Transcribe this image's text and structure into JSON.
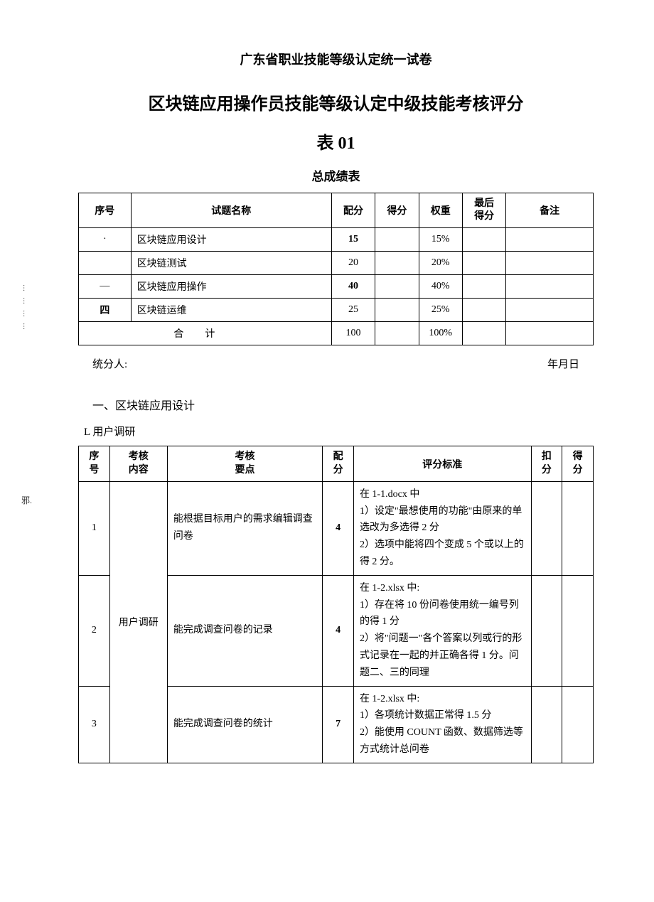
{
  "header": {
    "line1": "广东省职业技能等级认定统一试卷",
    "line2": "区块链应用操作员技能等级认定中级技能考核评分",
    "line3": "表 01",
    "subtitle": "总成绩表"
  },
  "side": {
    "dots": "…………",
    "label": "邪."
  },
  "scoreTable": {
    "headers": {
      "seq": "序号",
      "name": "试题名称",
      "points": "配分",
      "score": "得分",
      "weight": "权重",
      "final_l1": "最后",
      "final_l2": "得分",
      "note": "备注"
    },
    "rows": [
      {
        "seq": "·",
        "name": "区块链应用设计",
        "points": "15",
        "points_bold": true,
        "weight": "15%"
      },
      {
        "seq": "",
        "name": "区块链测试",
        "points": "20",
        "points_bold": false,
        "weight": "20%"
      },
      {
        "seq": "—",
        "name": "区块链应用操作",
        "points": "40",
        "points_bold": true,
        "weight": "40%"
      },
      {
        "seq": "四",
        "name": "区块链运维",
        "points": "25",
        "points_bold": false,
        "weight": "25%"
      }
    ],
    "total": {
      "label": "合计",
      "points": "100",
      "weight": "100%"
    }
  },
  "signer": {
    "left": "统分人:",
    "right": "年月日"
  },
  "section1": {
    "title": "一、区块链应用设计",
    "sub": "L 用户调研"
  },
  "detailTable": {
    "headers": {
      "seq_l1": "序",
      "seq_l2": "号",
      "content_l1": "考核",
      "content_l2": "内容",
      "point_l1": "考核",
      "point_l2": "要点",
      "pf_l1": "配",
      "pf_l2": "分",
      "std": "评分标准",
      "deduct_l1": "扣",
      "deduct_l2": "分",
      "get_l1": "得",
      "get_l2": "分"
    },
    "content_merged": "用户调研",
    "rows": [
      {
        "seq": "1",
        "point": "能根据目标用户的需求编辑调查问卷",
        "pf": "4",
        "std": "在 1-1.docx 中\n1）设定\"最想使用的功能\"由原来的单选改为多选得 2 分\n2）选项中能将四个变成 5 个或以上的得 2 分。"
      },
      {
        "seq": "2",
        "point": "能完成调查问卷的记录",
        "pf": "4",
        "std": "在 1-2.xlsx 中:\n1）存在将 10 份问卷使用统一编号列的得 1 分\n2）将\"问题一\"各个答案以列或行的形式记录在一起的并正确各得 1 分。问题二、三的同理"
      },
      {
        "seq": "3",
        "point": "能完成调查问卷的统计",
        "pf": "7",
        "std": "在 1-2.xlsx 中:\n1）各项统计数据正常得 1.5 分\n2）能使用 COUNT 函数、数据筛选等方式统计总问卷"
      }
    ]
  }
}
